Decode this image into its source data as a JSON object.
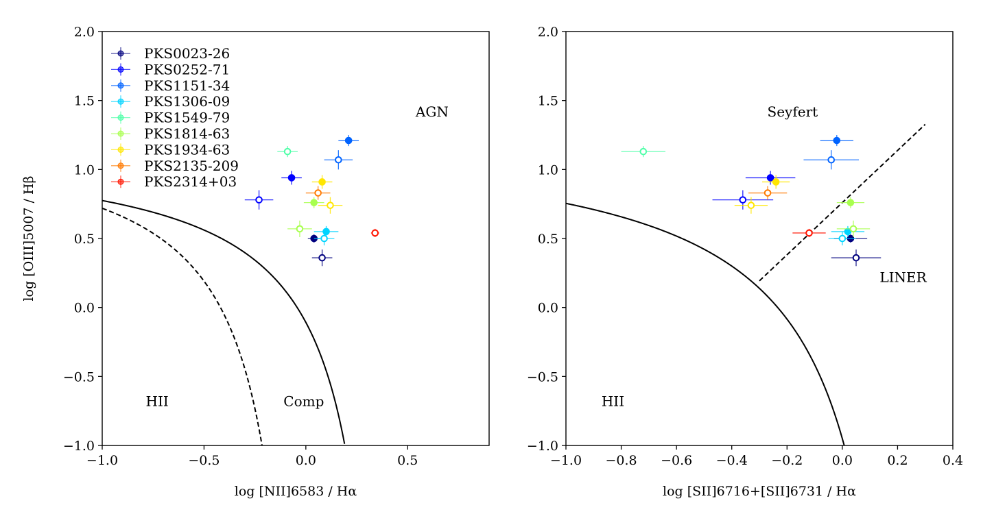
{
  "chart_data": [
    {
      "type": "scatter",
      "title": "",
      "xlabel": "log [NII]6583 / Hα",
      "ylabel": "log [OIII]5007 / Hβ",
      "xlim": [
        -1.0,
        0.9
      ],
      "ylim": [
        -1.0,
        2.0
      ],
      "xticks": [
        -1.0,
        -0.5,
        0.0,
        0.5
      ],
      "xtick_labels": [
        "−1.0",
        "−0.5",
        "0.0",
        "0.5"
      ],
      "yticks": [
        -1.0,
        -0.5,
        0.0,
        0.5,
        1.0,
        1.5,
        2.0
      ],
      "ytick_labels": [
        "−1.0",
        "−0.5",
        "0.0",
        "0.5",
        "1.0",
        "1.5",
        "2.0"
      ],
      "legend": "upper-left",
      "region_labels": [
        {
          "text": "AGN",
          "x": 0.62,
          "y": 1.42
        },
        {
          "text": "HII",
          "x": -0.73,
          "y": -0.68
        },
        {
          "text": "Comp",
          "x": -0.01,
          "y": -0.68
        }
      ],
      "curves": [
        {
          "name": "kauffmann",
          "style": "dashed",
          "xmin": -1.0,
          "xmax": -0.205
        },
        {
          "name": "kewley",
          "style": "solid",
          "xmin": -1.0,
          "xmax": 0.19
        }
      ],
      "points": [
        {
          "series": "PKS0023-26",
          "x": 0.04,
          "y": 0.5,
          "xerr": 0.03,
          "yerr": 0.03,
          "filled": true
        },
        {
          "series": "PKS0023-26",
          "x": 0.08,
          "y": 0.36,
          "xerr": 0.05,
          "yerr": 0.06,
          "filled": false
        },
        {
          "series": "PKS0252-71",
          "x": -0.07,
          "y": 0.94,
          "xerr": 0.05,
          "yerr": 0.05,
          "filled": true
        },
        {
          "series": "PKS0252-71",
          "x": -0.23,
          "y": 0.78,
          "xerr": 0.07,
          "yerr": 0.07,
          "filled": false
        },
        {
          "series": "PKS1151-34",
          "x": 0.21,
          "y": 1.21,
          "xerr": 0.05,
          "yerr": 0.04,
          "filled": true
        },
        {
          "series": "PKS1151-34",
          "x": 0.16,
          "y": 1.07,
          "xerr": 0.07,
          "yerr": 0.07,
          "filled": false
        },
        {
          "series": "PKS1306-09",
          "x": 0.1,
          "y": 0.55,
          "xerr": 0.06,
          "yerr": 0.04,
          "filled": true
        },
        {
          "series": "PKS1306-09",
          "x": 0.09,
          "y": 0.5,
          "xerr": 0.05,
          "yerr": 0.05,
          "filled": false
        },
        {
          "series": "PKS1549-79",
          "x": -0.09,
          "y": 1.13,
          "xerr": 0.05,
          "yerr": 0.04,
          "filled": false
        },
        {
          "series": "PKS1814-63",
          "x": 0.04,
          "y": 0.76,
          "xerr": 0.05,
          "yerr": 0.04,
          "filled": true
        },
        {
          "series": "PKS1814-63",
          "x": -0.03,
          "y": 0.57,
          "xerr": 0.06,
          "yerr": 0.06,
          "filled": false
        },
        {
          "series": "PKS1934-63",
          "x": 0.08,
          "y": 0.91,
          "xerr": 0.05,
          "yerr": 0.05,
          "filled": true
        },
        {
          "series": "PKS1934-63",
          "x": 0.12,
          "y": 0.74,
          "xerr": 0.06,
          "yerr": 0.06,
          "filled": false
        },
        {
          "series": "PKS2135-209",
          "x": 0.06,
          "y": 0.83,
          "xerr": 0.06,
          "yerr": 0.05,
          "filled": false
        },
        {
          "series": "PKS2314+03",
          "x": 0.34,
          "y": 0.54,
          "xerr": 0.02,
          "yerr": 0.03,
          "filled": false
        }
      ]
    },
    {
      "type": "scatter",
      "title": "",
      "xlabel": "log  [SII]6716+[SII]6731 / Hα",
      "ylabel": "",
      "xlim": [
        -1.0,
        0.4
      ],
      "ylim": [
        -1.0,
        2.0
      ],
      "xticks": [
        -1.0,
        -0.8,
        -0.6,
        -0.4,
        -0.2,
        0.0,
        0.2,
        0.4
      ],
      "xtick_labels": [
        "−1.0",
        "−0.8",
        "−0.6",
        "−0.4",
        "−0.2",
        "0.0",
        "0.2",
        "0.4"
      ],
      "yticks": [
        -1.0,
        -0.5,
        0.0,
        0.5,
        1.0,
        1.5,
        2.0
      ],
      "ytick_labels": [
        "−1.0",
        "−0.5",
        "0.0",
        "0.5",
        "1.0",
        "1.5",
        "2.0"
      ],
      "region_labels": [
        {
          "text": "Seyfert",
          "x": -0.18,
          "y": 1.42
        },
        {
          "text": "HII",
          "x": -0.83,
          "y": -0.68
        },
        {
          "text": "LINER",
          "x": 0.22,
          "y": 0.22
        }
      ],
      "curves": [
        {
          "name": "kewley_sii",
          "style": "solid",
          "xmin": -1.0,
          "xmax": 0.0097
        },
        {
          "name": "seyfert_liner",
          "style": "dashed",
          "xmin": -0.3,
          "xmax": 0.3
        }
      ],
      "points": [
        {
          "series": "PKS0023-26",
          "x": 0.03,
          "y": 0.5,
          "xerr": 0.06,
          "yerr": 0.03,
          "filled": true
        },
        {
          "series": "PKS0023-26",
          "x": 0.05,
          "y": 0.36,
          "xerr": 0.09,
          "yerr": 0.06,
          "filled": false
        },
        {
          "series": "PKS0252-71",
          "x": -0.26,
          "y": 0.94,
          "xerr": 0.09,
          "yerr": 0.05,
          "filled": true
        },
        {
          "series": "PKS0252-71",
          "x": -0.36,
          "y": 0.78,
          "xerr": 0.11,
          "yerr": 0.07,
          "filled": false
        },
        {
          "series": "PKS1151-34",
          "x": -0.02,
          "y": 1.21,
          "xerr": 0.06,
          "yerr": 0.04,
          "filled": true
        },
        {
          "series": "PKS1151-34",
          "x": -0.04,
          "y": 1.07,
          "xerr": 0.1,
          "yerr": 0.07,
          "filled": false
        },
        {
          "series": "PKS1306-09",
          "x": 0.02,
          "y": 0.55,
          "xerr": 0.06,
          "yerr": 0.04,
          "filled": true
        },
        {
          "series": "PKS1306-09",
          "x": 0.0,
          "y": 0.5,
          "xerr": 0.05,
          "yerr": 0.05,
          "filled": false
        },
        {
          "series": "PKS1549-79",
          "x": -0.72,
          "y": 1.13,
          "xerr": 0.08,
          "yerr": 0.04,
          "filled": false
        },
        {
          "series": "PKS1814-63",
          "x": 0.03,
          "y": 0.76,
          "xerr": 0.05,
          "yerr": 0.04,
          "filled": true
        },
        {
          "series": "PKS1814-63",
          "x": 0.04,
          "y": 0.57,
          "xerr": 0.06,
          "yerr": 0.06,
          "filled": false
        },
        {
          "series": "PKS1934-63",
          "x": -0.24,
          "y": 0.91,
          "xerr": 0.05,
          "yerr": 0.05,
          "filled": true
        },
        {
          "series": "PKS1934-63",
          "x": -0.33,
          "y": 0.74,
          "xerr": 0.06,
          "yerr": 0.06,
          "filled": false
        },
        {
          "series": "PKS2135-209",
          "x": -0.27,
          "y": 0.83,
          "xerr": 0.07,
          "yerr": 0.05,
          "filled": false
        },
        {
          "series": "PKS2314+03",
          "x": -0.12,
          "y": 0.54,
          "xerr": 0.06,
          "yerr": 0.03,
          "filled": false
        }
      ]
    }
  ],
  "legend": {
    "entries": [
      {
        "label": "PKS0023-26",
        "color": "#00007f"
      },
      {
        "label": "PKS0252-71",
        "color": "#0000ff"
      },
      {
        "label": "PKS1151-34",
        "color": "#0063ff"
      },
      {
        "label": "PKS1306-09",
        "color": "#00d4ff"
      },
      {
        "label": "PKS1549-79",
        "color": "#4effa8"
      },
      {
        "label": "PKS1814-63",
        "color": "#a8ff4e"
      },
      {
        "label": "PKS1934-63",
        "color": "#ffe600"
      },
      {
        "label": "PKS2135-209",
        "color": "#ff7a00"
      },
      {
        "label": "PKS2314+03",
        "color": "#ff1400"
      }
    ]
  }
}
